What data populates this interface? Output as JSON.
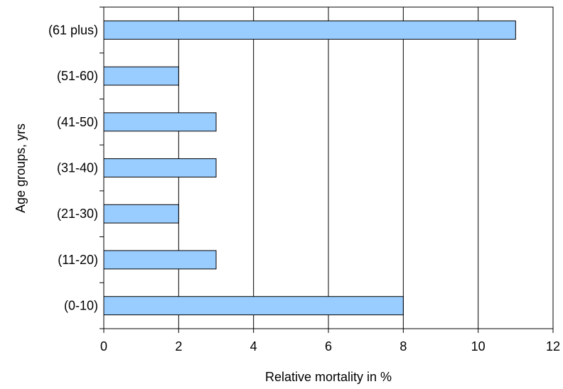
{
  "chart_data": {
    "type": "bar",
    "orientation": "horizontal",
    "categories": [
      "(0-10)",
      "(11-20)",
      "(21-30)",
      "(31-40)",
      "(41-50)",
      "(51-60)",
      "(61 plus)"
    ],
    "values": [
      8,
      3,
      2,
      3,
      3,
      2,
      11
    ],
    "title": "",
    "xlabel": "Relative mortality in %",
    "ylabel": "Age groups, yrs",
    "xlim": [
      0,
      12
    ],
    "xticks": [
      "0",
      "2",
      "4",
      "6",
      "8",
      "10",
      "12"
    ],
    "grid": "vertical",
    "legend": "none",
    "colors": {
      "bar_fill": "#99ccff",
      "bar_stroke": "#000000",
      "grid": "#000000",
      "axis": "#000000",
      "background": "#ffffff"
    }
  }
}
